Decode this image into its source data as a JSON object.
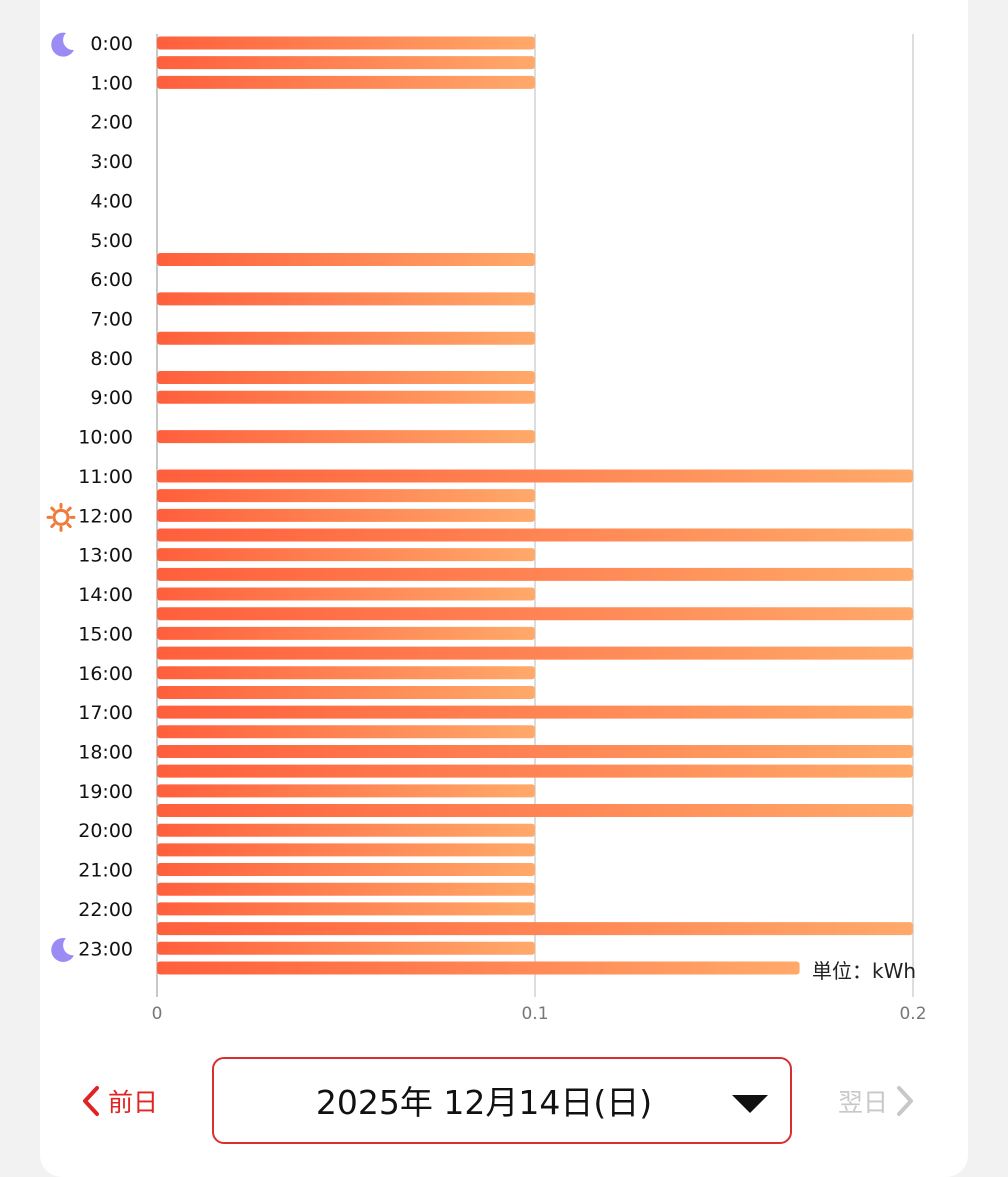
{
  "chart_data": {
    "type": "bar",
    "orientation": "horizontal",
    "unit_label": "単位：kWh",
    "y_tick_labels": [
      "0:00",
      "1:00",
      "2:00",
      "3:00",
      "4:00",
      "5:00",
      "6:00",
      "7:00",
      "8:00",
      "9:00",
      "10:00",
      "11:00",
      "12:00",
      "13:00",
      "14:00",
      "15:00",
      "16:00",
      "17:00",
      "18:00",
      "19:00",
      "20:00",
      "21:00",
      "22:00",
      "23:00"
    ],
    "x_ticks": [
      "0",
      "0.1",
      "0.2"
    ],
    "xlim": [
      0,
      0.2
    ],
    "grid": true,
    "categories": [
      "0:00",
      "0:30",
      "1:00",
      "1:30",
      "2:00",
      "2:30",
      "3:00",
      "3:30",
      "4:00",
      "4:30",
      "5:00",
      "5:30",
      "6:00",
      "6:30",
      "7:00",
      "7:30",
      "8:00",
      "8:30",
      "9:00",
      "9:30",
      "10:00",
      "10:30",
      "11:00",
      "11:30",
      "12:00",
      "12:30",
      "13:00",
      "13:30",
      "14:00",
      "14:30",
      "15:00",
      "15:30",
      "16:00",
      "16:30",
      "17:00",
      "17:30",
      "18:00",
      "18:30",
      "19:00",
      "19:30",
      "20:00",
      "20:30",
      "21:00",
      "21:30",
      "22:00",
      "22:30",
      "23:00",
      "23:30"
    ],
    "values": [
      0.1,
      0.1,
      0.1,
      0,
      0,
      0,
      0,
      0,
      0,
      0,
      0,
      0.1,
      0,
      0.1,
      0,
      0.1,
      0,
      0.1,
      0.1,
      0,
      0.1,
      0,
      0.2,
      0.1,
      0.1,
      0.2,
      0.1,
      0.2,
      0.1,
      0.2,
      0.1,
      0.2,
      0.1,
      0.1,
      0.2,
      0.1,
      0.2,
      0.2,
      0.1,
      0.2,
      0.1,
      0.1,
      0.1,
      0.1,
      0.1,
      0.2,
      0.1,
      0.17
    ],
    "icons": [
      {
        "at_label": "0:00",
        "name": "moon-icon",
        "color": "#9b8cf5"
      },
      {
        "at_label": "12:00",
        "name": "sun-icon",
        "color": "#f07a3a"
      },
      {
        "at_label": "23:00",
        "name": "moon-icon",
        "color": "#9b8cf5"
      }
    ],
    "bar_colors": {
      "start": "#ff5f3c",
      "end": "#ffa96a"
    }
  },
  "nav": {
    "prev_label": "前日",
    "next_label": "翌日",
    "date": "2025年 12月14日(日)"
  },
  "colors": {
    "accent": "#e02424",
    "disabled": "#c8c8c8"
  }
}
